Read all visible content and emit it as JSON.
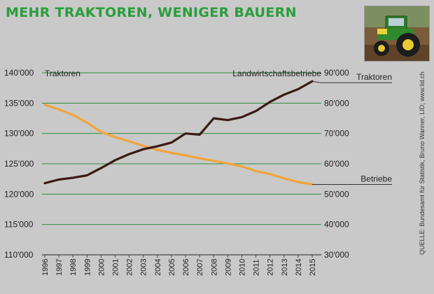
{
  "title": "MEHR TRAKTOREN, WENIGER BAUERN",
  "source": "QUELLE: Bundesamt für Statistik, Bruno Wanner, LID; www.lid.ch",
  "photo": {
    "subject": "tractor-photo"
  },
  "colors": {
    "background": "#c9c9c9",
    "title": "#2a9d3c",
    "gridline": "#2e8b3e",
    "traktoren_line": "#3b1a14",
    "betriebe_line": "#f2a43a",
    "text": "#222222"
  },
  "chart_data": {
    "type": "line",
    "title": "MEHR TRAKTOREN, WENIGER BAUERN",
    "x": [
      "1996",
      "1997",
      "1998",
      "1999",
      "2000",
      "2001",
      "2002",
      "2003",
      "2004",
      "2005",
      "2006",
      "2007",
      "2008",
      "2009",
      "2010",
      "2011",
      "2012",
      "2013",
      "2014",
      "2015"
    ],
    "left_axis": {
      "label": "Traktoren",
      "ticks": [
        "110'000",
        "115'000",
        "120'000",
        "125'000",
        "130'000",
        "135'000",
        "140'000"
      ],
      "ylim": [
        110000,
        140000
      ]
    },
    "right_axis": {
      "label": "Landwirtschaftsbetriebe",
      "ticks": [
        "30'000",
        "40'000",
        "50'000",
        "60'000",
        "70'000",
        "80'000",
        "90'000"
      ],
      "ylim": [
        30000,
        90000
      ]
    },
    "series": [
      {
        "name": "Traktoren",
        "axis": "left",
        "color": "#3b1a14",
        "values": [
          121800,
          122400,
          122700,
          123100,
          124300,
          125600,
          126600,
          127400,
          127900,
          128500,
          130000,
          129800,
          132500,
          132200,
          132700,
          133700,
          135200,
          136400,
          137300,
          138600
        ]
      },
      {
        "name": "Betriebe",
        "axis": "right",
        "color": "#f2a43a",
        "values": [
          79500,
          77900,
          76100,
          73600,
          70500,
          68800,
          67400,
          65900,
          64600,
          63600,
          62800,
          61800,
          61000,
          60100,
          59100,
          57600,
          56600,
          55200,
          54000,
          53200
        ]
      }
    ],
    "grid": true,
    "gridlines": "horizontal"
  }
}
